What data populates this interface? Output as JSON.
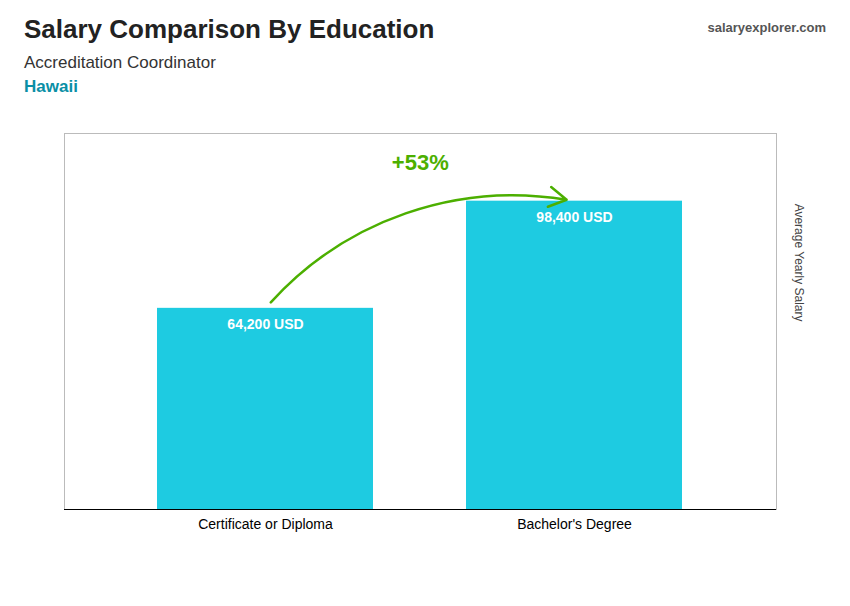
{
  "chart_data": {
    "type": "bar",
    "title": "Salary Comparison By Education",
    "subtitle": [
      "Accreditation Coordinator",
      "Hawaii"
    ],
    "ylabel": "Average Yearly Salary",
    "categories": [
      "Certificate or Diploma",
      "Bachelor's Degree"
    ],
    "values": [
      64200,
      98400
    ],
    "value_labels": [
      "64,200 USD",
      "98,400 USD"
    ],
    "data_labels": true,
    "color": "#1ecbe1",
    "ylim": [
      0,
      120000
    ],
    "tick_labels": "x",
    "grid": false,
    "annotations": [
      "+53%",
      "salaryexplorer.com"
    ]
  }
}
